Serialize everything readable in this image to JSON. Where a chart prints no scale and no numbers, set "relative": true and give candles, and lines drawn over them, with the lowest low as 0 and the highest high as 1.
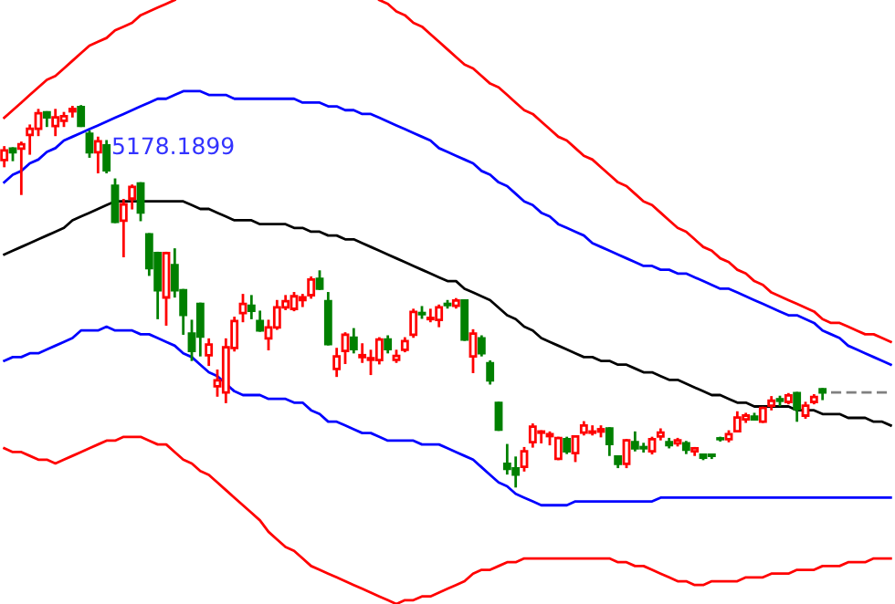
{
  "chart_data": {
    "type": "candlestick",
    "relative": true,
    "tick_labels": false,
    "categories": [
      null,
      null,
      null,
      null,
      null,
      null,
      null,
      null,
      null,
      null,
      null,
      null,
      null,
      null,
      null,
      null,
      null,
      null,
      null,
      null,
      null,
      null,
      null,
      null,
      null,
      null,
      null,
      null,
      null,
      null,
      null,
      null,
      null,
      null,
      null,
      null,
      null,
      null,
      null,
      null,
      null,
      null,
      null,
      null,
      null,
      null,
      null,
      null,
      null,
      null,
      null,
      null,
      null,
      null,
      null,
      null,
      null,
      null,
      null,
      null,
      null,
      null,
      null,
      null,
      null,
      null,
      null,
      null,
      null,
      null,
      null,
      null,
      null,
      null,
      null,
      null,
      null,
      null,
      null,
      null,
      null,
      null,
      null,
      null,
      null,
      null,
      null,
      null,
      null,
      null,
      null,
      null,
      null,
      null,
      null,
      null,
      null,
      null,
      null,
      null,
      null,
      null,
      null,
      null,
      null
    ],
    "annotations": [
      {
        "text": "5178.1899",
        "y": 1.0
      }
    ],
    "series": [
      {
        "type": "line",
        "color": "#808080",
        "line_style": "dashed",
        "values": [
          null,
          null,
          null,
          null,
          null,
          null,
          null,
          null,
          null,
          null,
          null,
          null,
          null,
          null,
          null,
          null,
          null,
          null,
          null,
          null,
          null,
          null,
          null,
          null,
          null,
          null,
          null,
          null,
          null,
          null,
          null,
          null,
          null,
          null,
          null,
          null,
          null,
          null,
          null,
          null,
          null,
          null,
          null,
          null,
          null,
          null,
          null,
          null,
          null,
          null,
          null,
          null,
          null,
          null,
          null,
          null,
          null,
          null,
          null,
          null,
          null,
          null,
          null,
          null,
          null,
          null,
          null,
          null,
          null,
          null,
          null,
          null,
          null,
          null,
          null,
          null,
          null,
          null,
          null,
          null,
          null,
          null,
          null,
          null,
          null,
          null,
          null,
          null,
          null,
          null,
          null,
          null,
          null,
          null,
          null,
          null,
          null,
          0.247,
          0.247,
          0.247,
          0.247,
          0.247,
          0.247,
          0.247,
          0.247
        ]
      },
      {
        "type": "line",
        "color": "#ff0000",
        "values": [
          0.97,
          0.99,
          1.01,
          1.03,
          1.05,
          1.07,
          1.08,
          1.1,
          1.12,
          1.14,
          1.16,
          1.17,
          1.18,
          1.2,
          1.21,
          1.22,
          1.24,
          1.25,
          1.26,
          1.27,
          1.28,
          null,
          null,
          null,
          null,
          null,
          null,
          null,
          null,
          null,
          null,
          null,
          null,
          null,
          null,
          null,
          null,
          null,
          null,
          null,
          null,
          null,
          null,
          null,
          1.28,
          1.27,
          1.25,
          1.24,
          1.22,
          1.21,
          1.19,
          1.17,
          1.15,
          1.13,
          1.11,
          1.1,
          1.08,
          1.06,
          1.05,
          1.03,
          1.01,
          0.99,
          0.98,
          0.96,
          0.94,
          0.92,
          0.91,
          0.89,
          0.87,
          0.86,
          0.84,
          0.82,
          0.8,
          0.79,
          0.77,
          0.75,
          0.74,
          0.72,
          0.7,
          0.68,
          0.67,
          0.65,
          0.63,
          0.62,
          0.6,
          0.59,
          0.57,
          0.56,
          0.54,
          0.53,
          0.51,
          0.5,
          0.49,
          0.48,
          0.47,
          0.46,
          0.44,
          0.43,
          0.43,
          0.42,
          0.41,
          0.4,
          0.4,
          0.39,
          0.38
        ]
      },
      {
        "type": "line",
        "color": "#0000ff",
        "values": [
          0.8,
          0.82,
          0.83,
          0.85,
          0.86,
          0.88,
          0.89,
          0.91,
          0.92,
          0.93,
          0.94,
          0.95,
          0.96,
          0.97,
          0.98,
          0.99,
          1.0,
          1.01,
          1.02,
          1.02,
          1.03,
          1.04,
          1.04,
          1.04,
          1.03,
          1.03,
          1.03,
          1.02,
          1.02,
          1.02,
          1.02,
          1.02,
          1.02,
          1.02,
          1.02,
          1.01,
          1.01,
          1.01,
          1.0,
          1.0,
          0.99,
          0.99,
          0.98,
          0.98,
          0.97,
          0.96,
          0.95,
          0.94,
          0.93,
          0.92,
          0.91,
          0.89,
          0.88,
          0.87,
          0.86,
          0.85,
          0.83,
          0.82,
          0.8,
          0.79,
          0.77,
          0.75,
          0.74,
          0.72,
          0.71,
          0.69,
          0.68,
          0.67,
          0.66,
          0.64,
          0.63,
          0.62,
          0.61,
          0.6,
          0.59,
          0.58,
          0.58,
          0.57,
          0.57,
          0.56,
          0.56,
          0.55,
          0.54,
          0.53,
          0.52,
          0.52,
          0.51,
          0.5,
          0.49,
          0.48,
          0.47,
          0.46,
          0.45,
          0.45,
          0.44,
          0.43,
          0.41,
          0.4,
          0.39,
          0.37,
          0.36,
          0.35,
          0.34,
          0.33,
          0.32
        ]
      },
      {
        "type": "line",
        "color": "#000000",
        "values": [
          0.61,
          0.62,
          0.63,
          0.64,
          0.65,
          0.66,
          0.67,
          0.68,
          0.7,
          0.71,
          0.72,
          0.73,
          0.74,
          0.75,
          0.75,
          0.75,
          0.75,
          0.75,
          0.75,
          0.75,
          0.75,
          0.75,
          0.74,
          0.73,
          0.73,
          0.72,
          0.71,
          0.7,
          0.7,
          0.7,
          0.69,
          0.69,
          0.69,
          0.69,
          0.68,
          0.68,
          0.67,
          0.67,
          0.66,
          0.66,
          0.65,
          0.65,
          0.64,
          0.63,
          0.62,
          0.61,
          0.6,
          0.59,
          0.58,
          0.57,
          0.56,
          0.55,
          0.54,
          0.54,
          0.52,
          0.51,
          0.5,
          0.49,
          0.47,
          0.45,
          0.44,
          0.42,
          0.41,
          0.39,
          0.38,
          0.37,
          0.36,
          0.35,
          0.34,
          0.34,
          0.33,
          0.33,
          0.32,
          0.32,
          0.31,
          0.3,
          0.3,
          0.29,
          0.28,
          0.28,
          0.27,
          0.26,
          0.25,
          0.24,
          0.24,
          0.23,
          0.22,
          0.22,
          0.21,
          0.21,
          0.21,
          0.21,
          0.21,
          0.2,
          0.2,
          0.2,
          0.19,
          0.19,
          0.19,
          0.18,
          0.18,
          0.18,
          0.17,
          0.17,
          0.16
        ]
      },
      {
        "type": "line",
        "color": "#0000ff",
        "values": [
          0.33,
          0.34,
          0.34,
          0.35,
          0.35,
          0.36,
          0.37,
          0.38,
          0.39,
          0.41,
          0.41,
          0.41,
          0.42,
          0.41,
          0.41,
          0.41,
          0.4,
          0.4,
          0.39,
          0.38,
          0.37,
          0.35,
          0.34,
          0.32,
          0.3,
          0.29,
          0.27,
          0.25,
          0.24,
          0.24,
          0.24,
          0.23,
          0.23,
          0.23,
          0.22,
          0.22,
          0.2,
          0.19,
          0.17,
          0.17,
          0.16,
          0.15,
          0.14,
          0.14,
          0.13,
          0.12,
          0.12,
          0.12,
          0.12,
          0.11,
          0.11,
          0.11,
          0.1,
          0.09,
          0.08,
          0.07,
          0.05,
          0.03,
          0.01,
          0.0,
          -0.02,
          -0.03,
          -0.04,
          -0.05,
          -0.05,
          -0.05,
          -0.05,
          -0.04,
          -0.04,
          -0.04,
          -0.04,
          -0.04,
          -0.04,
          -0.04,
          -0.04,
          -0.04,
          -0.04,
          -0.03,
          -0.03,
          -0.03,
          -0.03,
          -0.03,
          -0.03,
          -0.03,
          -0.03,
          -0.03,
          -0.03,
          -0.03,
          -0.03,
          -0.03,
          -0.03,
          -0.03,
          -0.03,
          -0.03,
          -0.03,
          -0.03,
          -0.03,
          -0.03,
          -0.03,
          -0.03,
          -0.03,
          -0.03,
          -0.03,
          -0.03,
          -0.03
        ]
      },
      {
        "type": "line",
        "color": "#ff0000",
        "values": [
          0.1,
          0.09,
          0.09,
          0.08,
          0.07,
          0.07,
          0.06,
          0.07,
          0.08,
          0.09,
          0.1,
          0.11,
          0.12,
          0.12,
          0.13,
          0.13,
          0.13,
          0.12,
          0.11,
          0.11,
          0.09,
          0.07,
          0.06,
          0.04,
          0.03,
          0.01,
          -0.01,
          -0.03,
          -0.05,
          -0.07,
          -0.09,
          -0.12,
          -0.14,
          -0.16,
          -0.17,
          -0.19,
          -0.21,
          -0.22,
          -0.23,
          -0.24,
          -0.25,
          -0.26,
          -0.27,
          -0.28,
          -0.29,
          -0.3,
          -0.31,
          -0.3,
          -0.3,
          -0.29,
          -0.29,
          -0.28,
          -0.27,
          -0.26,
          -0.25,
          -0.23,
          -0.22,
          -0.22,
          -0.21,
          -0.2,
          -0.2,
          -0.19,
          -0.19,
          -0.19,
          -0.19,
          -0.19,
          -0.19,
          -0.19,
          -0.19,
          -0.19,
          -0.19,
          -0.19,
          -0.2,
          -0.2,
          -0.21,
          -0.21,
          -0.22,
          -0.23,
          -0.24,
          -0.25,
          -0.25,
          -0.26,
          -0.26,
          -0.25,
          -0.25,
          -0.25,
          -0.25,
          -0.24,
          -0.24,
          -0.24,
          -0.23,
          -0.23,
          -0.23,
          -0.22,
          -0.22,
          -0.22,
          -0.21,
          -0.21,
          -0.21,
          -0.2,
          -0.2,
          -0.2,
          -0.19,
          -0.19,
          -0.19
        ]
      },
      {
        "colors": [
          "#ff0000",
          "#008000",
          "#ff0000",
          "#ff0000",
          "#ff0000",
          "#008000",
          "#ff0000",
          "#ff0000",
          "#ff0000",
          "#008000",
          "#008000",
          "#ff0000",
          "#008000",
          "#008000",
          "#ff0000",
          "#ff0000",
          "#008000",
          "#008000",
          "#008000",
          "#ff0000",
          "#008000",
          "#008000",
          "#008000",
          "#008000",
          "#ff0000",
          "#ff0000",
          "#ff0000",
          "#ff0000",
          "#ff0000",
          "#008000",
          "#008000",
          "#ff0000",
          "#ff0000",
          "#ff0000",
          "#ff0000",
          "#ff0000",
          "#ff0000",
          "#008000",
          "#008000",
          "#ff0000",
          "#ff0000",
          "#008000",
          "#ff0000",
          "#ff0000",
          "#ff0000",
          "#008000",
          "#ff0000",
          "#ff0000",
          "#ff0000",
          "#008000",
          "#ff0000",
          "#ff0000",
          "#008000",
          "#ff0000",
          "#008000",
          "#ff0000",
          "#008000",
          "#008000",
          "#008000",
          "#008000",
          "#008000",
          "#ff0000",
          "#ff0000",
          "#ff0000",
          "#ff0000",
          "#ff0000",
          "#008000",
          "#ff0000",
          "#ff0000",
          "#ff0000",
          "#ff0000",
          "#008000",
          "#008000",
          "#ff0000",
          "#008000",
          "#008000",
          "#ff0000",
          "#ff0000",
          "#008000",
          "#ff0000",
          "#008000",
          "#ff0000",
          "#008000",
          "#008000",
          "#008000",
          "#ff0000",
          "#ff0000",
          "#ff0000",
          "#008000",
          "#ff0000",
          "#ff0000",
          "#008000",
          "#ff0000",
          "#008000",
          "#ff0000",
          "#ff0000",
          "#008000",
          null,
          null,
          null,
          null,
          null,
          null,
          null,
          null
        ],
        "ohlc": [
          [
            0.859,
            0.892,
            0.843,
            0.884
          ],
          [
            0.889,
            0.889,
            0.859,
            0.879
          ],
          [
            0.889,
            0.904,
            0.77,
            0.9
          ],
          [
            0.925,
            0.949,
            0.876,
            0.941
          ],
          [
            0.941,
            0.99,
            0.925,
            0.982
          ],
          [
            0.984,
            0.984,
            0.949,
            0.971
          ],
          [
            0.948,
            0.99,
            0.925,
            0.971
          ],
          [
            0.962,
            0.982,
            0.949,
            0.974
          ],
          [
            0.987,
            0.998,
            0.974,
            0.993
          ],
          [
            0.998,
            1.0,
            0.949,
            0.949
          ],
          [
            0.928,
            0.933,
            0.868,
            0.879
          ],
          [
            0.879,
            0.917,
            0.827,
            0.908
          ],
          [
            0.897,
            0.908,
            0.827,
            0.832
          ],
          [
            0.791,
            0.807,
            0.696,
            0.696
          ],
          [
            0.699,
            0.753,
            0.606,
            0.742
          ],
          [
            0.757,
            0.791,
            0.732,
            0.788
          ],
          [
            0.797,
            0.797,
            0.701,
            0.721
          ],
          [
            0.663,
            0.663,
            0.557,
            0.574
          ],
          [
            0.614,
            0.614,
            0.443,
            0.516
          ],
          [
            0.497,
            0.614,
            0.426,
            0.614
          ],
          [
            0.582,
            0.623,
            0.5,
            0.516
          ],
          [
            0.516,
            0.516,
            0.402,
            0.451
          ],
          [
            0.402,
            0.435,
            0.333,
            0.356
          ],
          [
            0.48,
            0.48,
            0.345,
            0.394
          ],
          [
            0.345,
            0.386,
            0.32,
            0.373
          ],
          [
            0.263,
            0.304,
            0.239,
            0.279
          ],
          [
            0.247,
            0.386,
            0.222,
            0.366
          ],
          [
            0.364,
            0.443,
            0.358,
            0.435
          ],
          [
            0.456,
            0.503,
            0.435,
            0.48
          ],
          [
            0.475,
            0.5,
            0.443,
            0.462
          ],
          [
            0.435,
            0.459,
            0.41,
            0.41
          ],
          [
            0.389,
            0.435,
            0.361,
            0.418
          ],
          [
            0.418,
            0.487,
            0.415,
            0.471
          ],
          [
            0.471,
            0.5,
            0.467,
            0.487
          ],
          [
            0.467,
            0.508,
            0.464,
            0.5
          ],
          [
            0.49,
            0.503,
            0.475,
            0.497
          ],
          [
            0.503,
            0.549,
            0.497,
            0.544
          ],
          [
            0.546,
            0.565,
            0.52,
            0.52
          ],
          [
            0.487,
            0.508,
            0.374,
            0.374
          ],
          [
            0.309,
            0.361,
            0.291,
            0.342
          ],
          [
            0.356,
            0.402,
            0.325,
            0.399
          ],
          [
            0.391,
            0.413,
            0.353,
            0.361
          ],
          [
            0.34,
            0.373,
            0.328,
            0.345
          ],
          [
            0.333,
            0.356,
            0.296,
            0.337
          ],
          [
            0.332,
            0.389,
            0.324,
            0.386
          ],
          [
            0.386,
            0.394,
            0.353,
            0.361
          ],
          [
            0.333,
            0.356,
            0.328,
            0.343
          ],
          [
            0.359,
            0.389,
            0.356,
            0.382
          ],
          [
            0.399,
            0.464,
            0.394,
            0.459
          ],
          [
            0.456,
            0.471,
            0.444,
            0.453
          ],
          [
            0.44,
            0.464,
            0.435,
            0.443
          ],
          [
            0.438,
            0.475,
            0.422,
            0.471
          ],
          [
            0.48,
            0.487,
            0.471,
            0.477
          ],
          [
            0.475,
            0.492,
            0.471,
            0.489
          ],
          [
            0.489,
            0.489,
            0.386,
            0.386
          ],
          [
            0.342,
            0.41,
            0.301,
            0.402
          ],
          [
            0.389,
            0.394,
            0.345,
            0.35
          ],
          [
            0.324,
            0.328,
            0.271,
            0.279
          ],
          [
            0.219,
            0.219,
            0.149,
            0.149
          ],
          [
            0.059,
            0.108,
            0.034,
            0.046
          ],
          [
            0.047,
            0.075,
            0.0,
            0.031
          ],
          [
            0.051,
            0.1,
            0.042,
            0.092
          ],
          [
            0.116,
            0.162,
            0.105,
            0.157
          ],
          [
            0.141,
            0.144,
            0.116,
            0.144
          ],
          [
            0.132,
            0.141,
            0.111,
            0.137
          ],
          [
            0.072,
            0.127,
            0.072,
            0.127
          ],
          [
            0.124,
            0.127,
            0.088,
            0.092
          ],
          [
            0.087,
            0.131,
            0.067,
            0.131
          ],
          [
            0.141,
            0.168,
            0.137,
            0.16
          ],
          [
            0.141,
            0.157,
            0.137,
            0.144
          ],
          [
            0.144,
            0.157,
            0.132,
            0.15
          ],
          [
            0.152,
            0.152,
            0.083,
            0.111
          ],
          [
            0.078,
            0.078,
            0.051,
            0.059
          ],
          [
            0.059,
            0.121,
            0.051,
            0.121
          ],
          [
            0.116,
            0.141,
            0.095,
            0.1
          ],
          [
            0.103,
            0.111,
            0.092,
            0.1
          ],
          [
            0.092,
            0.127,
            0.087,
            0.124
          ],
          [
            0.131,
            0.149,
            0.124,
            0.141
          ],
          [
            0.116,
            0.124,
            0.103,
            0.108
          ],
          [
            0.113,
            0.124,
            0.108,
            0.121
          ],
          [
            0.113,
            0.116,
            0.088,
            0.096
          ],
          [
            0.092,
            0.1,
            0.083,
            0.1
          ],
          [
            0.083,
            0.083,
            0.072,
            0.075
          ],
          [
            0.083,
            0.083,
            0.075,
            0.08
          ],
          [
            0.126,
            0.127,
            0.121,
            0.124
          ],
          [
            0.124,
            0.144,
            0.119,
            0.137
          ],
          [
            0.145,
            0.194,
            0.145,
            0.181
          ],
          [
            0.176,
            0.19,
            0.17,
            0.186
          ],
          [
            0.183,
            0.19,
            0.176,
            0.176
          ],
          [
            0.17,
            0.206,
            0.17,
            0.206
          ],
          [
            0.212,
            0.234,
            0.203,
            0.225
          ],
          [
            0.229,
            0.235,
            0.214,
            0.225
          ],
          [
            0.222,
            0.242,
            0.219,
            0.239
          ],
          [
            0.245,
            0.245,
            0.173,
            0.203
          ],
          [
            0.186,
            0.219,
            0.181,
            0.212
          ],
          [
            0.222,
            0.239,
            0.219,
            0.235
          ],
          [
            0.255,
            0.255,
            0.23,
            0.247
          ],
          null,
          null,
          null,
          null,
          null,
          null,
          null,
          null
        ]
      }
    ]
  }
}
